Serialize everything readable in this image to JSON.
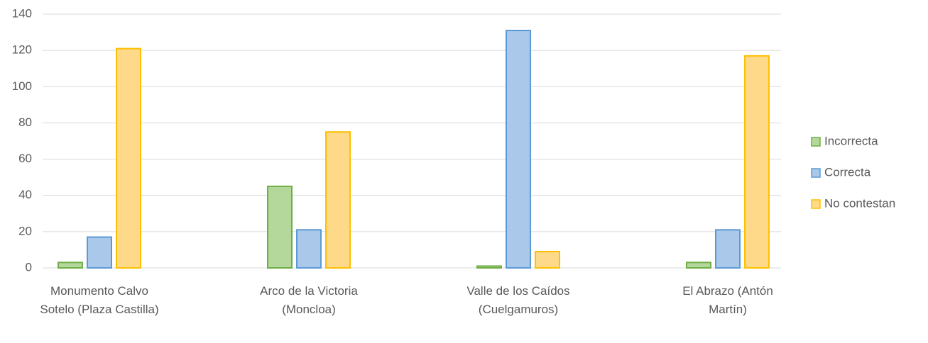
{
  "chart_data": {
    "type": "bar",
    "categories": [
      "Monumento Calvo Sotelo (Plaza Castilla)",
      "Arco de la Victoria (Moncloa)",
      "Valle de los Caídos (Cuelgamuros)",
      "El Abrazo (Antón Martín)"
    ],
    "series": [
      {
        "name": "Incorrecta",
        "color": "#70ad47",
        "fill": "#b4d89b",
        "values": [
          3,
          45,
          1,
          3
        ]
      },
      {
        "name": "Correcta",
        "color": "#5b9bd5",
        "fill": "#a9c8ea",
        "values": [
          17,
          21,
          131,
          21
        ]
      },
      {
        "name": "No contestan",
        "color": "#ffc000",
        "fill": "#ffd98a",
        "values": [
          121,
          75,
          9,
          117
        ]
      }
    ],
    "ylim": [
      0,
      140
    ],
    "yticks": [
      0,
      20,
      40,
      60,
      80,
      100,
      120,
      140
    ],
    "grid": true,
    "legend": "right"
  }
}
